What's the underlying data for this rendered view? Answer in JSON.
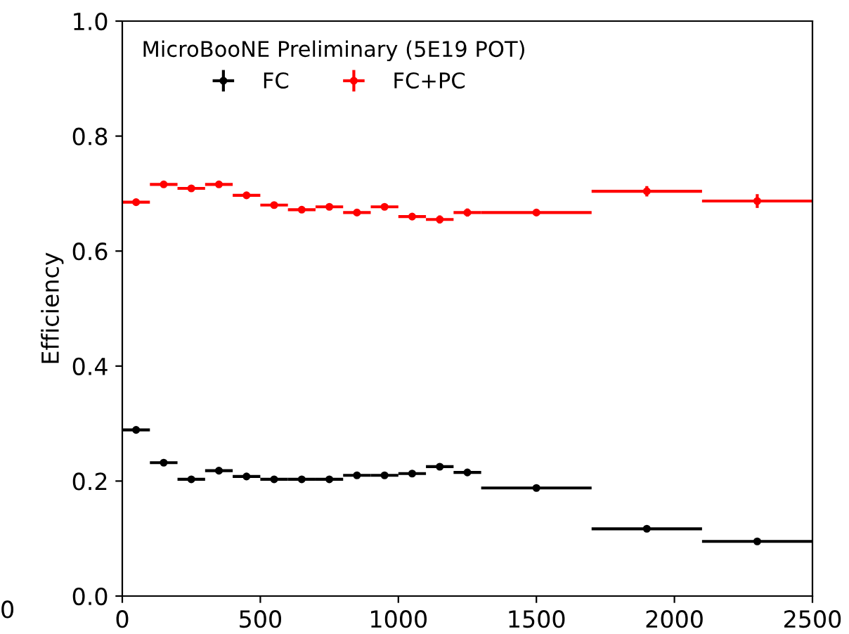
{
  "chart_data": {
    "type": "scatter",
    "ylabel": "Efficiency",
    "legend_title": "MicroBooNE Preliminary (5E19 POT)",
    "legend": "top left",
    "marker": "circle",
    "grid": false,
    "x": [
      50,
      150,
      250,
      350,
      450,
      550,
      650,
      750,
      850,
      950,
      1050,
      1150,
      1250,
      1500,
      1900,
      2300
    ],
    "series": [
      {
        "name": "FC",
        "color": "#000000",
        "xerrors": [
          50,
          50,
          50,
          50,
          50,
          50,
          50,
          50,
          50,
          50,
          50,
          50,
          50,
          200,
          200,
          200
        ],
        "values": [
          0.289,
          0.232,
          0.203,
          0.218,
          0.208,
          0.203,
          0.203,
          0.203,
          0.21,
          0.21,
          0.213,
          0.225,
          0.215,
          0.188,
          0.117,
          0.095
        ],
        "errors": [
          0.003,
          0.003,
          0.003,
          0.003,
          0.003,
          0.003,
          0.003,
          0.003,
          0.003,
          0.004,
          0.004,
          0.006,
          0.006,
          0.003,
          0.004,
          0.005
        ]
      },
      {
        "name": "FC+PC",
        "color": "#ff0000",
        "xerrors": [
          50,
          50,
          50,
          50,
          50,
          50,
          50,
          50,
          50,
          50,
          50,
          50,
          50,
          200,
          200,
          200
        ],
        "values": [
          0.685,
          0.716,
          0.709,
          0.716,
          0.697,
          0.68,
          0.672,
          0.677,
          0.667,
          0.677,
          0.66,
          0.655,
          0.667,
          0.667,
          0.704,
          0.687
        ],
        "errors": [
          0.004,
          0.004,
          0.004,
          0.004,
          0.004,
          0.004,
          0.004,
          0.004,
          0.005,
          0.005,
          0.005,
          0.007,
          0.007,
          0.004,
          0.009,
          0.012
        ]
      }
    ],
    "xlim": [
      0,
      2500
    ],
    "xticks": [
      0,
      500,
      1000,
      1500,
      2000,
      2500
    ],
    "ylim": [
      0,
      1.0
    ],
    "yticks": [
      {
        "value": 0,
        "label": "0.0"
      },
      {
        "value": 0.2,
        "label": "0.2"
      },
      {
        "value": 0.4,
        "label": "0.4"
      },
      {
        "value": 0.6,
        "label": "0.6"
      },
      {
        "value": 0.8,
        "label": "0.8"
      },
      {
        "value": 1.0,
        "label": "1.0"
      }
    ],
    "annotations": [
      "0"
    ]
  }
}
